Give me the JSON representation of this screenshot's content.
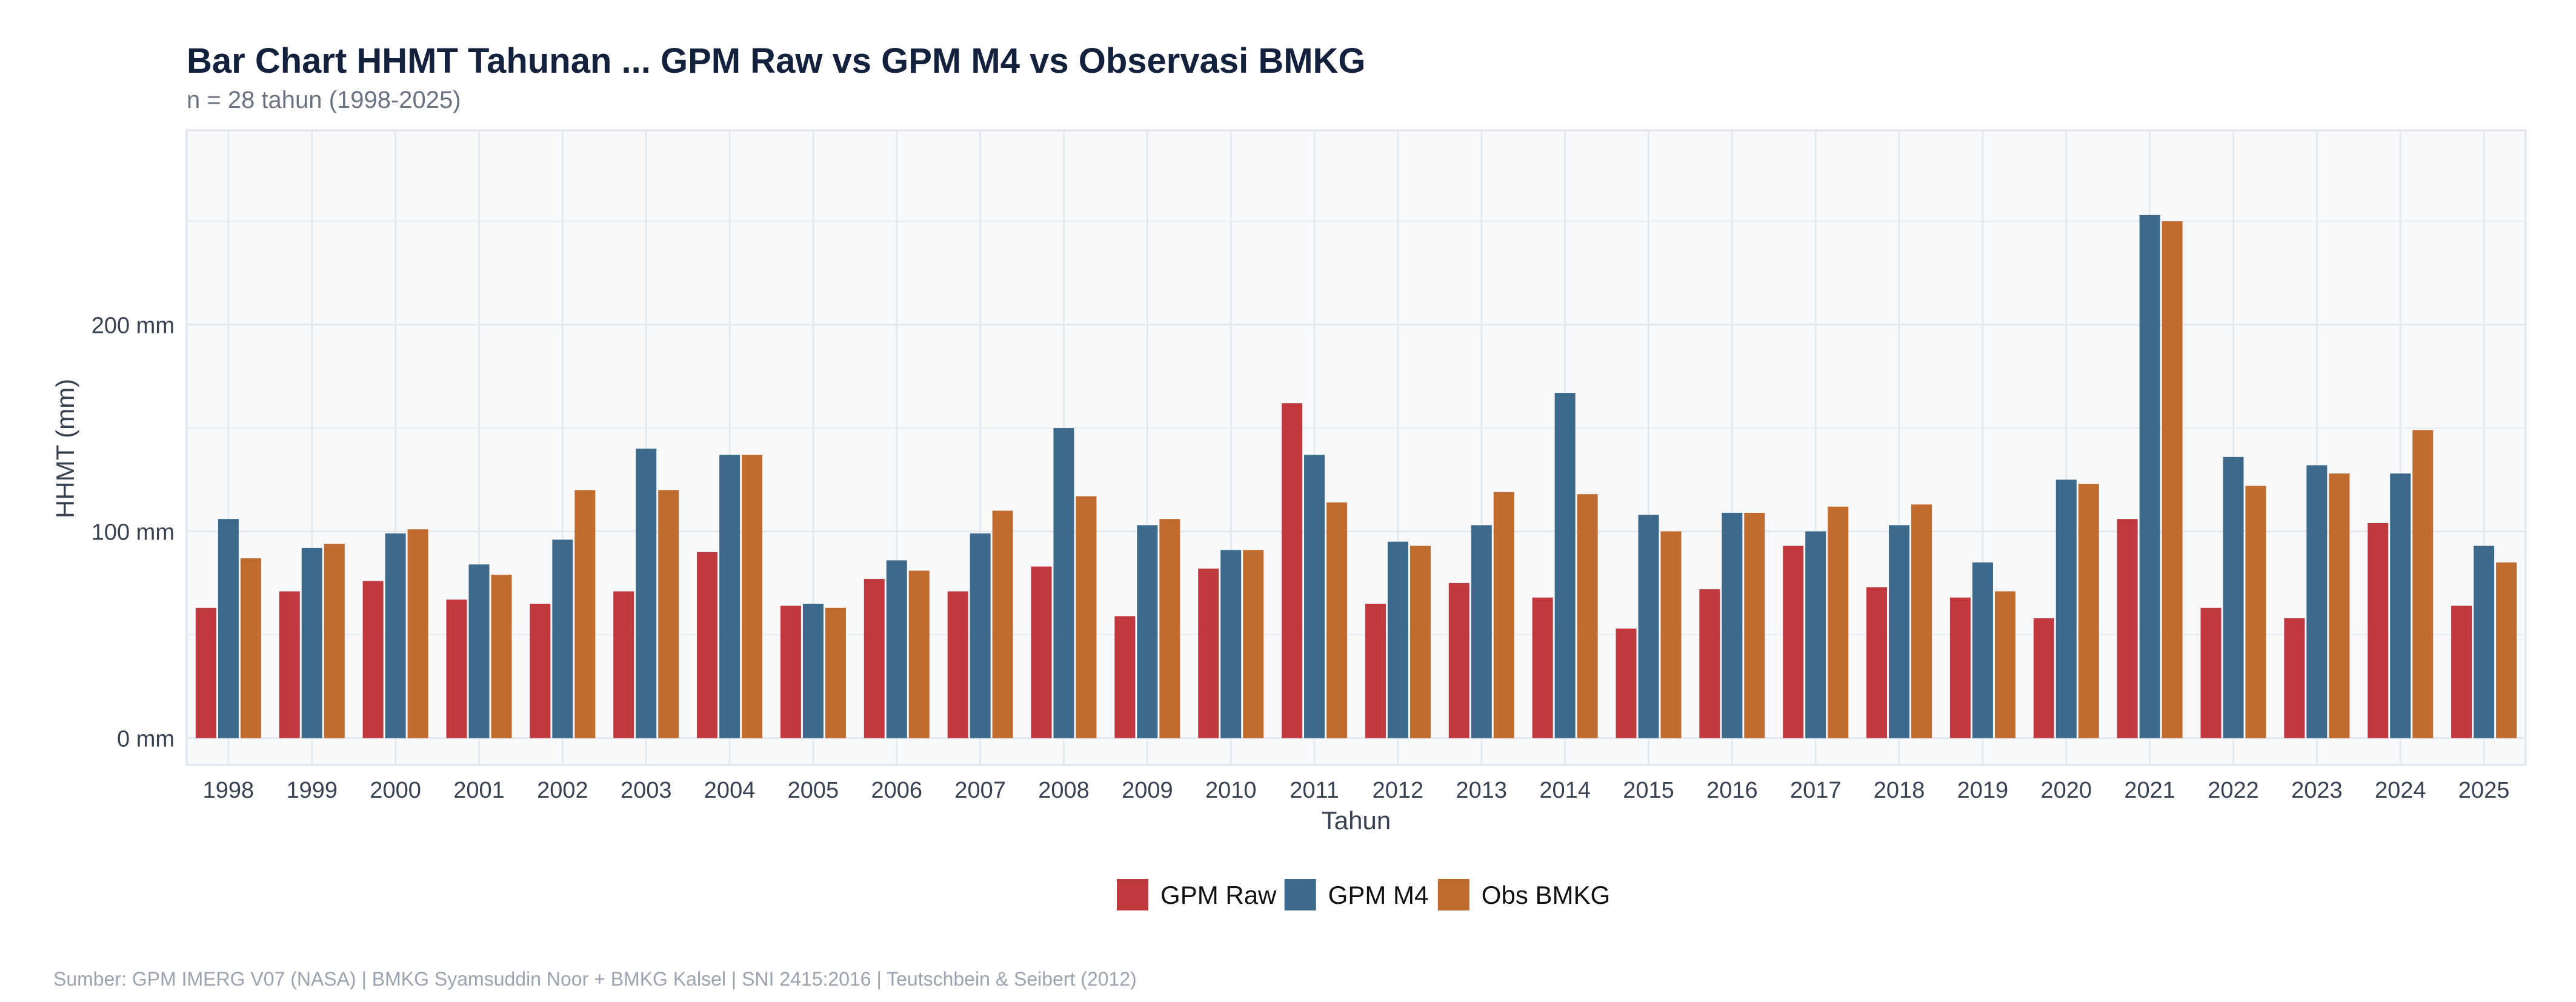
{
  "chart_data": {
    "type": "bar",
    "title": "Bar Chart HHMT Tahunan ... GPM Raw vs GPM M4 vs Observasi BMKG",
    "subtitle": "n = 28 tahun (1998-2025)",
    "xlabel": "Tahun",
    "ylabel": "HHMT (mm)",
    "ylim": [
      -13,
      294
    ],
    "yticks": [
      0,
      100,
      200
    ],
    "ytick_labels": [
      "0 mm",
      "100 mm",
      "200 mm"
    ],
    "grid": true,
    "legend_position": "bottom",
    "categories": [
      "1998",
      "1999",
      "2000",
      "2001",
      "2002",
      "2003",
      "2004",
      "2005",
      "2006",
      "2007",
      "2008",
      "2009",
      "2010",
      "2011",
      "2012",
      "2013",
      "2014",
      "2015",
      "2016",
      "2017",
      "2018",
      "2019",
      "2020",
      "2021",
      "2022",
      "2023",
      "2024",
      "2025"
    ],
    "series": [
      {
        "name": "GPM Raw",
        "color": "#c0393f",
        "values": [
          63,
          71,
          76,
          67,
          65,
          71,
          90,
          64,
          77,
          71,
          83,
          59,
          82,
          162,
          65,
          75,
          68,
          53,
          72,
          93,
          73,
          68,
          58,
          106,
          63,
          58,
          104,
          64
        ]
      },
      {
        "name": "GPM M4",
        "color": "#3d6a8a",
        "values": [
          106,
          92,
          99,
          84,
          96,
          140,
          137,
          65,
          86,
          99,
          150,
          103,
          91,
          137,
          95,
          103,
          167,
          108,
          109,
          100,
          103,
          85,
          125,
          253,
          136,
          132,
          128,
          93
        ]
      },
      {
        "name": "Obs BMKG",
        "color": "#c26b2e",
        "values": [
          87,
          94,
          101,
          79,
          120,
          120,
          137,
          63,
          81,
          110,
          117,
          106,
          91,
          114,
          93,
          119,
          118,
          100,
          109,
          112,
          113,
          71,
          123,
          250,
          122,
          128,
          149,
          85
        ]
      }
    ]
  },
  "caption": "Sumber: GPM IMERG V07 (NASA) | BMKG Syamsuddin Noor + BMKG Kalsel | SNI 2415:2016 | Teutschbein & Seibert (2012)"
}
